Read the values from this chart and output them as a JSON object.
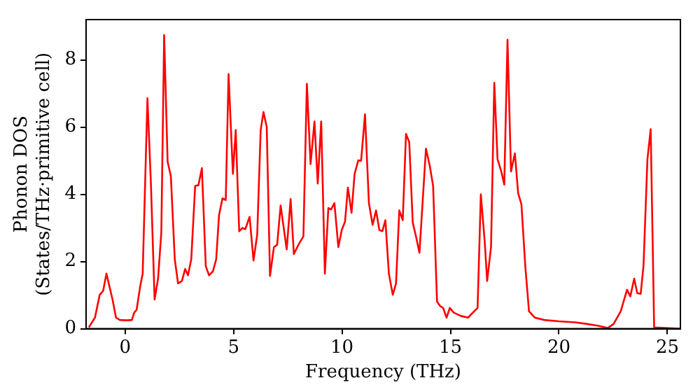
{
  "chart_data": {
    "type": "line",
    "xlabel": "Frequency (THz)",
    "ylabel": "Phonon DOS\n(States/THz·primitive cell)",
    "xlim": [
      -1.8,
      25.6
    ],
    "ylim": [
      0,
      9.2
    ],
    "xticks": [
      0,
      5,
      10,
      15,
      20,
      25
    ],
    "yticks": [
      0,
      2,
      4,
      6,
      8
    ],
    "grid": false,
    "legend": false,
    "marker": "none",
    "line_style": "solid",
    "series": [
      {
        "color": "#ff0000",
        "x": [
          -1.67,
          -1.39,
          -1.17,
          -1.01,
          -0.86,
          -0.57,
          -0.42,
          -0.24,
          0.09,
          0.31,
          0.42,
          0.53,
          0.7,
          0.81,
          1.03,
          1.19,
          1.36,
          1.52,
          1.67,
          1.8,
          1.96,
          2.11,
          2.29,
          2.44,
          2.62,
          2.77,
          2.9,
          3.05,
          3.23,
          3.38,
          3.54,
          3.72,
          3.87,
          4.05,
          4.2,
          4.33,
          4.49,
          4.64,
          4.77,
          4.97,
          5.1,
          5.26,
          5.41,
          5.54,
          5.74,
          5.92,
          6.09,
          6.25,
          6.38,
          6.53,
          6.68,
          6.86,
          7.01,
          7.17,
          7.45,
          7.63,
          7.78,
          8.0,
          8.22,
          8.38,
          8.55,
          8.73,
          8.88,
          9.04,
          9.21,
          9.37,
          9.5,
          9.65,
          9.83,
          9.99,
          10.14,
          10.27,
          10.44,
          10.58,
          10.75,
          10.88,
          11.06,
          11.24,
          11.41,
          11.57,
          11.72,
          11.86,
          12.0,
          12.16,
          12.34,
          12.49,
          12.64,
          12.8,
          12.95,
          13.1,
          13.26,
          13.42,
          13.57,
          13.72,
          13.87,
          14.05,
          14.2,
          14.38,
          14.53,
          14.66,
          14.82,
          14.97,
          15.15,
          15.48,
          15.81,
          16.03,
          16.25,
          16.4,
          16.58,
          16.69,
          16.87,
          17.02,
          17.17,
          17.33,
          17.48,
          17.63,
          17.79,
          17.97,
          18.12,
          18.27,
          18.45,
          18.62,
          18.89,
          19.33,
          19.99,
          20.76,
          21.31,
          21.79,
          22.25,
          22.52,
          22.85,
          23.14,
          23.29,
          23.47,
          23.61,
          23.77,
          23.9,
          24.08,
          24.23,
          24.39,
          25.6
        ],
        "values": [
          0.04,
          0.33,
          1.01,
          1.13,
          1.64,
          0.84,
          0.33,
          0.26,
          0.25,
          0.26,
          0.48,
          0.56,
          1.28,
          1.64,
          6.86,
          4.32,
          0.87,
          1.49,
          2.87,
          8.74,
          4.97,
          4.54,
          2.07,
          1.35,
          1.42,
          1.78,
          1.59,
          2.07,
          4.25,
          4.27,
          4.78,
          1.86,
          1.59,
          1.71,
          2.07,
          3.38,
          3.88,
          3.83,
          7.58,
          4.61,
          5.91,
          2.9,
          3.0,
          2.96,
          3.33,
          2.03,
          2.8,
          5.91,
          6.45,
          6.0,
          1.57,
          2.43,
          2.5,
          3.67,
          2.36,
          3.86,
          2.22,
          2.51,
          2.75,
          7.29,
          4.9,
          6.17,
          4.32,
          6.17,
          1.64,
          3.59,
          3.55,
          3.74,
          2.43,
          2.94,
          3.19,
          4.2,
          3.45,
          4.61,
          5.01,
          5.0,
          6.38,
          3.74,
          3.09,
          3.52,
          2.94,
          2.9,
          3.23,
          1.64,
          1.01,
          1.35,
          3.52,
          3.23,
          5.8,
          5.55,
          3.16,
          2.72,
          2.26,
          3.81,
          5.36,
          4.83,
          4.25,
          0.81,
          0.67,
          0.62,
          0.33,
          0.62,
          0.48,
          0.38,
          0.33,
          0.48,
          0.62,
          4.0,
          2.58,
          1.42,
          2.43,
          7.32,
          5.04,
          4.71,
          4.29,
          8.6,
          4.68,
          5.22,
          4.03,
          3.71,
          1.86,
          0.52,
          0.33,
          0.26,
          0.22,
          0.19,
          0.14,
          0.09,
          0.02,
          0.14,
          0.52,
          1.16,
          0.96,
          1.49,
          1.06,
          1.04,
          1.88,
          5.04,
          5.94,
          0.04,
          0
        ]
      }
    ]
  }
}
